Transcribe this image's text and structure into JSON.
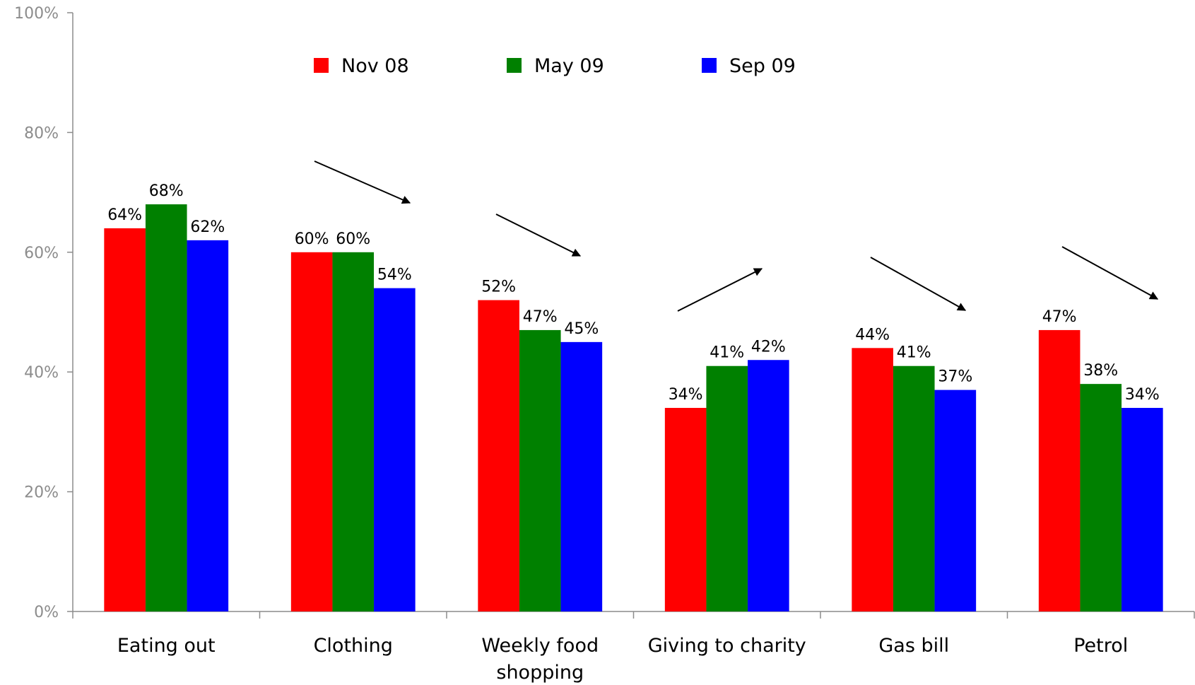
{
  "chart_data": {
    "type": "bar",
    "title": "",
    "xlabel": "",
    "ylabel": "",
    "ylim": [
      0,
      100
    ],
    "yticks": [
      "0%",
      "20%",
      "40%",
      "60%",
      "80%",
      "100%"
    ],
    "ytick_values": [
      0,
      20,
      40,
      60,
      80,
      100
    ],
    "grid": false,
    "legend_position": "top",
    "categories": [
      [
        "Eating out"
      ],
      [
        "Clothing"
      ],
      [
        "Weekly food",
        "shopping"
      ],
      [
        "Giving to charity"
      ],
      [
        "Gas bill"
      ],
      [
        "Petrol"
      ]
    ],
    "series": [
      {
        "name": "Nov 08",
        "color": "#ff0000",
        "values": [
          64,
          60,
          52,
          34,
          44,
          47
        ],
        "labels": [
          "64%",
          "60%",
          "52%",
          "34%",
          "44%",
          "47%"
        ]
      },
      {
        "name": "May 09",
        "color": "#008000",
        "values": [
          68,
          60,
          47,
          41,
          41,
          38
        ],
        "labels": [
          "68%",
          "60%",
          "47%",
          "41%",
          "41%",
          "38%"
        ]
      },
      {
        "name": "Sep 09",
        "color": "#0000ff",
        "values": [
          62,
          54,
          45,
          42,
          37,
          34
        ],
        "labels": [
          "62%",
          "54%",
          "45%",
          "42%",
          "37%",
          "34%"
        ]
      }
    ],
    "annotations": [
      {
        "type": "trend-arrow",
        "direction": "down",
        "category": "Clothing"
      },
      {
        "type": "trend-arrow",
        "direction": "down",
        "category": "Weekly food shopping"
      },
      {
        "type": "trend-arrow",
        "direction": "up",
        "category": "Giving to charity"
      },
      {
        "type": "trend-arrow",
        "direction": "down",
        "category": "Gas bill"
      },
      {
        "type": "trend-arrow",
        "direction": "down",
        "category": "Petrol"
      }
    ]
  }
}
